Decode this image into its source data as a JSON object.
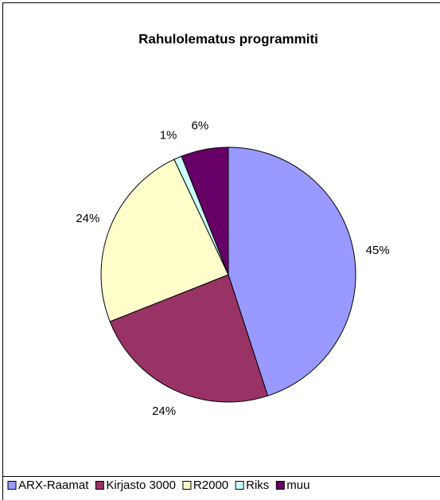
{
  "chart_data": {
    "type": "pie",
    "title": "Rahulolematus programmiti",
    "categories": [
      "ARX-Raamat",
      "Kirjasto 3000",
      "R2000",
      "Riks",
      "muu"
    ],
    "values": [
      45,
      24,
      24,
      1,
      6
    ],
    "value_labels": [
      "45%",
      "24%",
      "24%",
      "1%",
      "6%"
    ],
    "colors": [
      "#9999ff",
      "#993366",
      "#ffffcc",
      "#ccffff",
      "#660066"
    ],
    "legend": "bottom"
  }
}
